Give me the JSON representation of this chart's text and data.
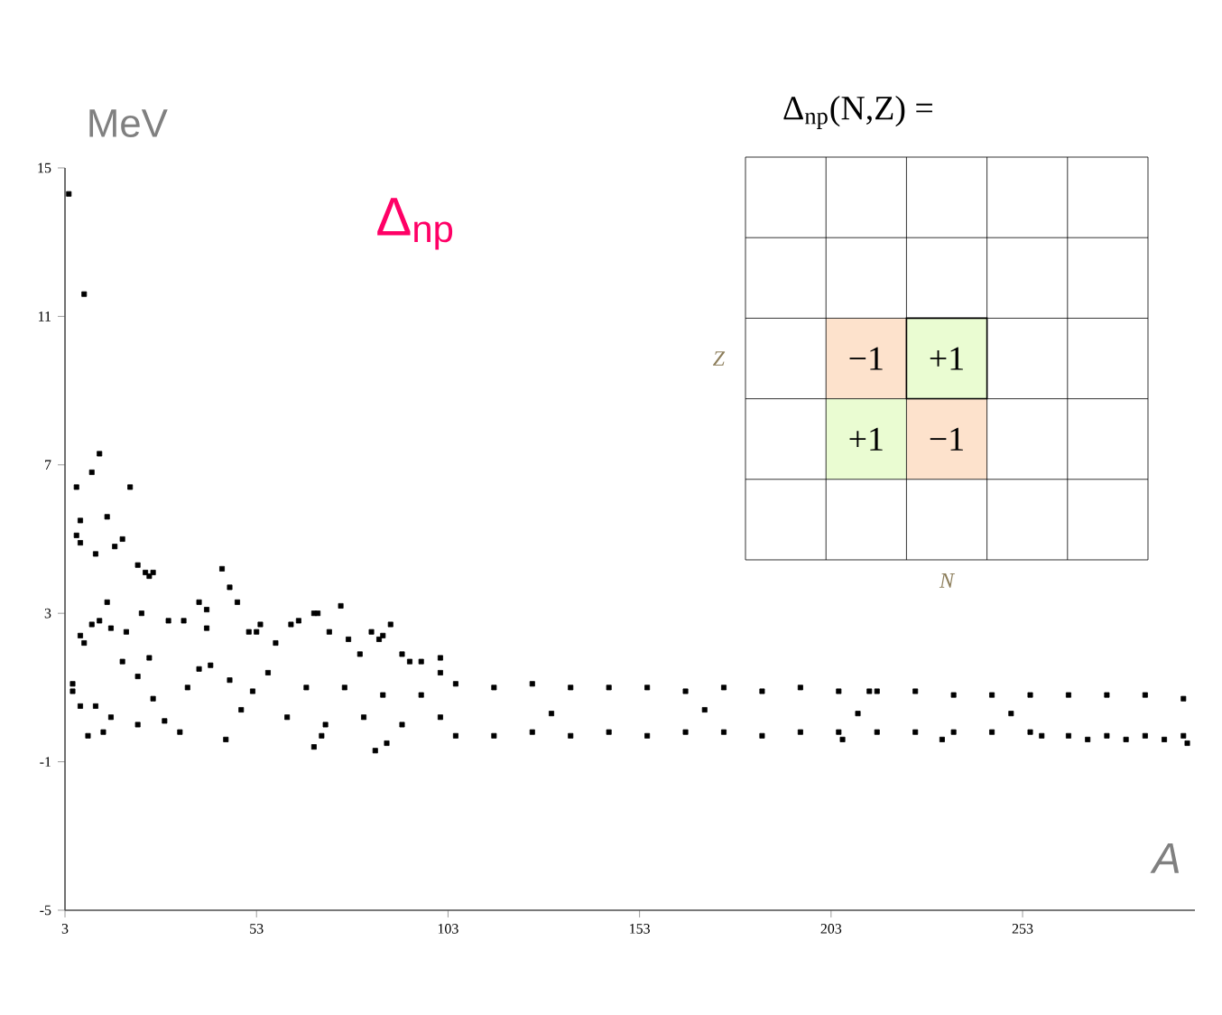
{
  "chart_data": [
    {
      "type": "scatter",
      "title": "Δ$_{np}$",
      "xlabel": "A",
      "ylabel": "MeV",
      "marker": "square",
      "grid": false,
      "xlim": [
        3,
        298
      ],
      "ylim": [
        -5,
        15
      ],
      "xticks": [
        3,
        53,
        103,
        153,
        203,
        253
      ],
      "yticks": [
        15,
        11,
        7,
        3,
        -1,
        -5
      ],
      "series": [
        {
          "color": "#000000",
          "x": [
            4,
            8,
            12,
            10,
            6,
            20,
            7,
            14,
            6,
            7,
            11,
            16,
            18,
            22,
            24,
            25,
            26,
            44,
            46,
            48,
            38,
            40,
            68,
            75,
            5,
            5,
            7,
            9,
            13,
            11,
            15,
            7,
            8,
            10,
            12,
            14,
            15,
            19,
            23,
            30,
            34,
            40,
            51,
            53,
            54,
            58,
            62,
            64,
            69,
            72,
            77,
            80,
            83,
            85,
            86,
            88,
            91,
            93,
            96,
            101,
            101,
            45,
            68,
            84,
            87,
            70,
            18,
            22,
            25,
            26,
            22,
            29,
            33,
            35,
            38,
            41,
            46,
            49,
            52,
            56,
            61,
            66,
            71,
            76,
            81,
            86,
            91,
            96,
            101,
            105,
            105,
            115,
            115,
            125,
            125,
            135,
            135,
            145,
            145,
            155,
            155,
            165,
            165,
            175,
            175,
            185,
            185,
            195,
            195,
            205,
            205,
            215,
            215,
            225,
            225,
            235,
            235,
            245,
            245,
            255,
            255,
            265,
            265,
            275,
            275,
            285,
            285,
            295,
            295,
            206,
            213,
            232,
            258,
            270,
            280,
            290,
            296,
            130,
            170,
            210,
            250
          ],
          "values": [
            14.3,
            11.6,
            7.3,
            6.8,
            6.4,
            6.4,
            5.5,
            5.6,
            5.1,
            4.9,
            4.6,
            4.8,
            5.0,
            4.3,
            4.1,
            4.0,
            4.1,
            4.2,
            3.7,
            3.3,
            3.3,
            3.1,
            3.0,
            3.2,
            1.1,
            0.9,
            0.5,
            -0.3,
            -0.2,
            0.5,
            0.2,
            2.4,
            2.2,
            2.7,
            2.8,
            3.3,
            2.6,
            2.5,
            3.0,
            2.8,
            2.8,
            2.6,
            2.5,
            2.5,
            2.7,
            2.2,
            2.7,
            2.8,
            3.0,
            2.5,
            2.3,
            1.9,
            2.5,
            2.3,
            2.4,
            2.7,
            1.9,
            1.7,
            1.7,
            1.8,
            1.4,
            -0.4,
            -0.6,
            -0.7,
            -0.5,
            -0.3,
            1.7,
            1.3,
            1.8,
            0.7,
            0.0,
            0.1,
            -0.2,
            1.0,
            1.5,
            1.6,
            1.2,
            0.4,
            0.9,
            1.4,
            0.2,
            1.0,
            0.0,
            1.0,
            0.2,
            0.8,
            0.0,
            0.8,
            0.2,
            1.1,
            -0.3,
            1.0,
            -0.3,
            1.1,
            -0.2,
            1.0,
            -0.3,
            1.0,
            -0.2,
            1.0,
            -0.3,
            0.9,
            -0.2,
            1.0,
            -0.2,
            0.9,
            -0.3,
            1.0,
            -0.2,
            0.9,
            -0.2,
            0.9,
            -0.2,
            0.9,
            -0.2,
            0.8,
            -0.2,
            0.8,
            -0.2,
            0.8,
            -0.2,
            0.8,
            -0.3,
            0.8,
            -0.3,
            0.8,
            -0.3,
            0.7,
            -0.3,
            -0.4,
            0.9,
            -0.4,
            -0.3,
            -0.4,
            -0.4,
            -0.4,
            -0.5,
            0.3,
            0.4,
            0.3,
            0.3
          ]
        }
      ]
    },
    {
      "type": "other",
      "title": "Δ$_{np}$(N,Z) =",
      "xlabel": "N",
      "ylabel": "Z",
      "annotations": [
        "−1",
        "+1",
        "+1",
        "−1"
      ]
    }
  ]
}
